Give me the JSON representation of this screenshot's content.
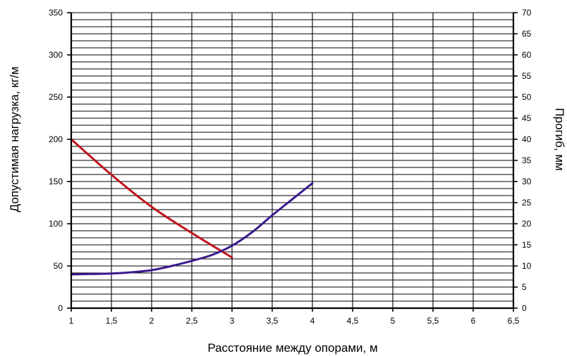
{
  "chart_data": {
    "type": "line",
    "title": "",
    "xlabel": "Расстояние между опорами, м",
    "ylabel_left": "Допустимая нагрузка, кг/м",
    "ylabel_right": "Прогиб, мм",
    "xlim": [
      1,
      6.5
    ],
    "ylim_left": [
      0,
      350
    ],
    "ylim_right": [
      0,
      70
    ],
    "x_ticks": [
      "1",
      "1,5",
      "2",
      "2,5",
      "3",
      "3,5",
      "4",
      "4,5",
      "5",
      "5,5",
      "6",
      "6,5"
    ],
    "y_left_ticks": [
      "0",
      "50",
      "100",
      "150",
      "200",
      "250",
      "300",
      "350"
    ],
    "y_right_ticks": [
      "0",
      "5",
      "10",
      "15",
      "20",
      "25",
      "30",
      "35",
      "40",
      "45",
      "50",
      "55",
      "60",
      "65",
      "70"
    ],
    "grid": true,
    "series": [
      {
        "axis": "left",
        "color": "#c0141c",
        "points": [
          [
            1,
            200
          ],
          [
            1.5,
            158
          ],
          [
            2,
            120
          ],
          [
            2.5,
            89
          ],
          [
            3,
            60
          ]
        ]
      },
      {
        "axis": "right",
        "color": "#3a1a8c",
        "points": [
          [
            1,
            8
          ],
          [
            1.25,
            8.1
          ],
          [
            1.5,
            8.2
          ],
          [
            1.75,
            8.5
          ],
          [
            2,
            9
          ],
          [
            2.25,
            10
          ],
          [
            2.5,
            11.2
          ],
          [
            2.75,
            12.6
          ],
          [
            3,
            14.8
          ],
          [
            3.25,
            18
          ],
          [
            3.5,
            22
          ],
          [
            3.75,
            25.8
          ],
          [
            4,
            29.6
          ]
        ]
      }
    ]
  }
}
